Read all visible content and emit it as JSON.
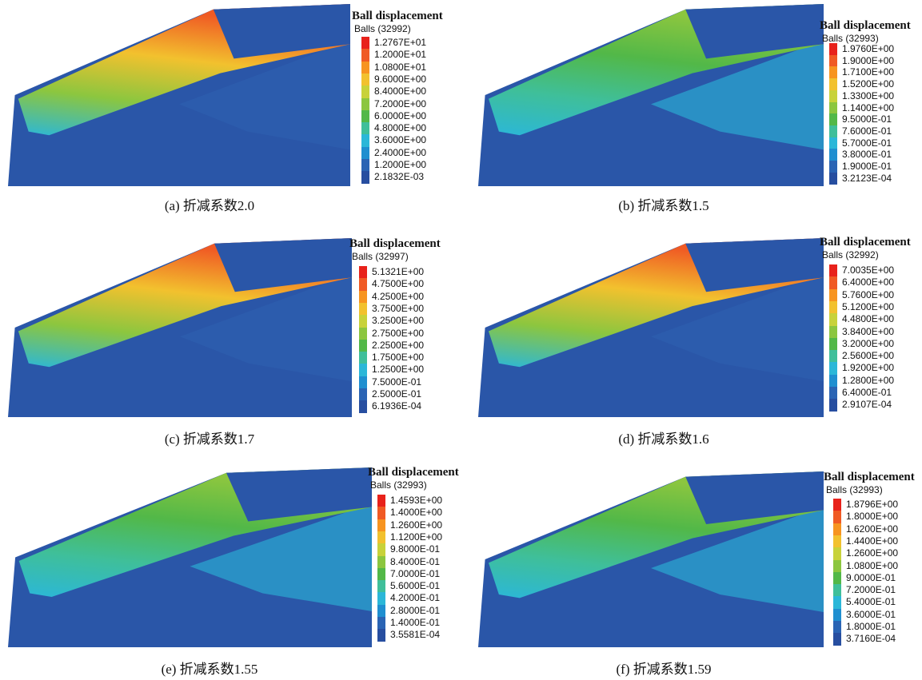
{
  "panels": [
    {
      "caption": "(a) 折减系数2.0",
      "legend": {
        "title": "Ball displacement",
        "balls": "Balls (32992)",
        "labels": [
          "1.2767E+01",
          "1.2000E+01",
          "1.0800E+01",
          "9.6000E+00",
          "8.4000E+00",
          "7.2000E+00",
          "6.0000E+00",
          "4.8000E+00",
          "3.6000E+00",
          "2.4000E+00",
          "1.2000E+00",
          "2.1832E-03"
        ]
      }
    },
    {
      "caption": "(b) 折减系数1.5",
      "legend": {
        "title": "Ball displacement",
        "balls": "Balls (32993)",
        "labels": [
          "1.9760E+00",
          "1.9000E+00",
          "1.7100E+00",
          "1.5200E+00",
          "1.3300E+00",
          "1.1400E+00",
          "9.5000E-01",
          "7.6000E-01",
          "5.7000E-01",
          "3.8000E-01",
          "1.9000E-01",
          "3.2123E-04"
        ]
      }
    },
    {
      "caption": "(c) 折减系数1.7",
      "legend": {
        "title": "Ball displacement",
        "balls": "Balls (32997)",
        "labels": [
          "5.1321E+00",
          "4.7500E+00",
          "4.2500E+00",
          "3.7500E+00",
          "3.2500E+00",
          "2.7500E+00",
          "2.2500E+00",
          "1.7500E+00",
          "1.2500E+00",
          "7.5000E-01",
          "2.5000E-01",
          "6.1936E-04"
        ]
      }
    },
    {
      "caption": "(d) 折减系数1.6",
      "legend": {
        "title": "Ball displacement",
        "balls": "Balls (32992)",
        "labels": [
          "7.0035E+00",
          "6.4000E+00",
          "5.7600E+00",
          "5.1200E+00",
          "4.4800E+00",
          "3.8400E+00",
          "3.2000E+00",
          "2.5600E+00",
          "1.9200E+00",
          "1.2800E+00",
          "6.4000E-01",
          "2.9107E-04"
        ]
      }
    },
    {
      "caption": "(e) 折减系数1.55",
      "legend": {
        "title": "Ball displacement",
        "balls": "Balls (32993)",
        "labels": [
          "1.4593E+00",
          "1.4000E+00",
          "1.2600E+00",
          "1.1200E+00",
          "9.8000E-01",
          "8.4000E-01",
          "7.0000E-01",
          "5.6000E-01",
          "4.2000E-01",
          "2.8000E-01",
          "1.4000E-01",
          "3.5581E-04"
        ]
      }
    },
    {
      "caption": "(f) 折减系数1.59",
      "legend": {
        "title": "Ball displacement",
        "balls": "Balls (32993)",
        "labels": [
          "1.8796E+00",
          "1.8000E+00",
          "1.6200E+00",
          "1.4400E+00",
          "1.2600E+00",
          "1.0800E+00",
          "9.0000E-01",
          "7.2000E-01",
          "5.4000E-01",
          "3.6000E-01",
          "1.8000E-01",
          "3.7160E-04"
        ]
      }
    }
  ]
}
